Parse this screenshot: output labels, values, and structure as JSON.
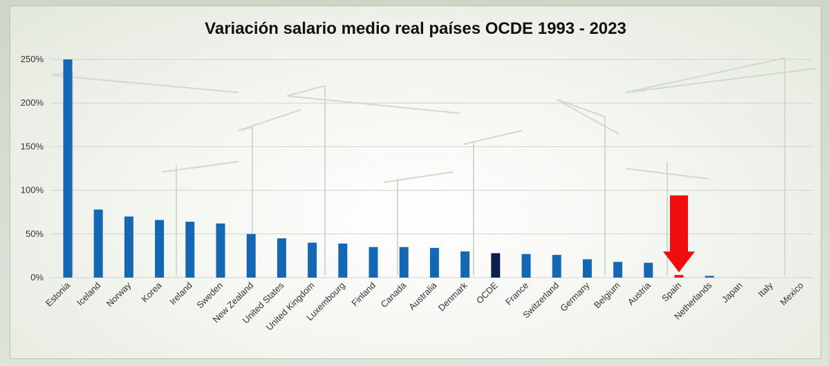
{
  "chart_data": {
    "type": "bar",
    "title": "Variación salario medio real países OCDE 1993 - 2023",
    "xlabel": "",
    "ylabel": "",
    "ylim": [
      0,
      250
    ],
    "yticks": [
      0,
      50,
      100,
      150,
      200,
      250
    ],
    "ytick_labels": [
      "0%",
      "50%",
      "100%",
      "150%",
      "200%",
      "250%"
    ],
    "grid": true,
    "categories": [
      "Estonia",
      "Iceland",
      "Norway",
      "Korea",
      "Ireland",
      "Sweden",
      "New Zealand",
      "United States",
      "United Kingdom",
      "Luxembourg",
      "Finland",
      "Canada",
      "Australia",
      "Denmark",
      "OCDE",
      "France",
      "Switzerland",
      "Germany",
      "Belgium",
      "Austria",
      "Spain",
      "Netherlands",
      "Japan",
      "Italy",
      "Mexico"
    ],
    "values": [
      250,
      78,
      70,
      66,
      64,
      62,
      50,
      45,
      40,
      39,
      35,
      35,
      34,
      30,
      28,
      27,
      26,
      21,
      18,
      17,
      3,
      2,
      0,
      0,
      0
    ],
    "colors": {
      "default": "#1567b3",
      "OCDE": "#0d1f4d",
      "Spain": "#e8151b",
      "arrow": "#f00d0d"
    },
    "annotations": [
      {
        "type": "arrow",
        "target": "Spain",
        "direction": "down"
      }
    ]
  }
}
